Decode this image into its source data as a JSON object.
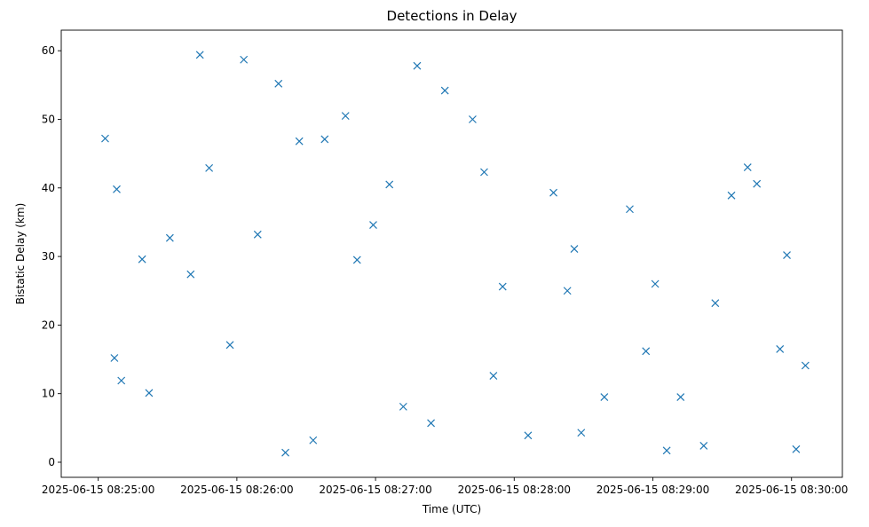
{
  "chart_data": {
    "type": "scatter",
    "title": "Detections in Delay",
    "xlabel": "Time (UTC)",
    "ylabel": "Bistatic Delay (km)",
    "x_format": "datetime",
    "xlim": [
      "2025-06-15 08:24:44",
      "2025-06-15 08:30:22"
    ],
    "ylim": [
      -2.2,
      63
    ],
    "xticks": [
      "2025-06-15 08:25:00",
      "2025-06-15 08:26:00",
      "2025-06-15 08:27:00",
      "2025-06-15 08:28:00",
      "2025-06-15 08:29:00",
      "2025-06-15 08:30:00"
    ],
    "yticks": [
      0,
      10,
      20,
      30,
      40,
      50,
      60
    ],
    "marker": "x",
    "color": "#1f77b4",
    "grid": false,
    "legend": "none",
    "series": [
      {
        "x": [
          "2025-06-15 08:25:03",
          "2025-06-15 08:25:07",
          "2025-06-15 08:25:08",
          "2025-06-15 08:25:19",
          "2025-06-15 08:25:31",
          "2025-06-15 08:25:44",
          "2025-06-15 08:25:48",
          "2025-06-15 08:26:03",
          "2025-06-15 08:26:09",
          "2025-06-15 08:26:18",
          "2025-06-15 08:26:27",
          "2025-06-15 08:26:38",
          "2025-06-15 08:26:47",
          "2025-06-15 08:26:59",
          "2025-06-15 08:27:06",
          "2025-06-15 08:27:18",
          "2025-06-15 08:27:30",
          "2025-06-15 08:27:42",
          "2025-06-15 08:27:55",
          "2025-06-15 08:28:06",
          "2025-06-15 08:28:17",
          "2025-06-15 08:28:29",
          "2025-06-15 08:28:39",
          "2025-06-15 08:28:50",
          "2025-06-15 08:29:01",
          "2025-06-15 08:29:12",
          "2025-06-15 08:29:22",
          "2025-06-15 08:29:34",
          "2025-06-15 08:29:45",
          "2025-06-15 08:29:55",
          "2025-06-15 08:30:06",
          "2025-06-15 08:25:10",
          "2025-06-15 08:25:40",
          "2025-06-15 08:26:21",
          "2025-06-15 08:26:52",
          "2025-06-15 08:27:24",
          "2025-06-15 08:27:51",
          "2025-06-15 08:28:23",
          "2025-06-15 08:28:57",
          "2025-06-15 08:29:27",
          "2025-06-15 08:29:58",
          "2025-06-15 08:25:22",
          "2025-06-15 08:25:57",
          "2025-06-15 08:26:33",
          "2025-06-15 08:27:12",
          "2025-06-15 08:27:47",
          "2025-06-15 08:28:26",
          "2025-06-15 08:29:06",
          "2025-06-15 08:29:41",
          "2025-06-15 08:30:02"
        ],
        "y": [
          47.2,
          15.2,
          39.8,
          29.6,
          32.7,
          59.4,
          42.9,
          58.7,
          33.2,
          55.2,
          46.8,
          47.1,
          50.5,
          34.6,
          40.5,
          57.8,
          54.2,
          50.0,
          25.6,
          3.9,
          39.3,
          4.3,
          9.5,
          36.9,
          26.0,
          9.5,
          2.4,
          38.9,
          40.6,
          16.5,
          14.1,
          11.9,
          27.4,
          1.4,
          29.5,
          5.7,
          12.6,
          25.0,
          16.2,
          23.2,
          30.2,
          10.1,
          17.1,
          3.2,
          8.1,
          42.3,
          31.1,
          1.7,
          43.0,
          1.9
        ]
      }
    ]
  }
}
